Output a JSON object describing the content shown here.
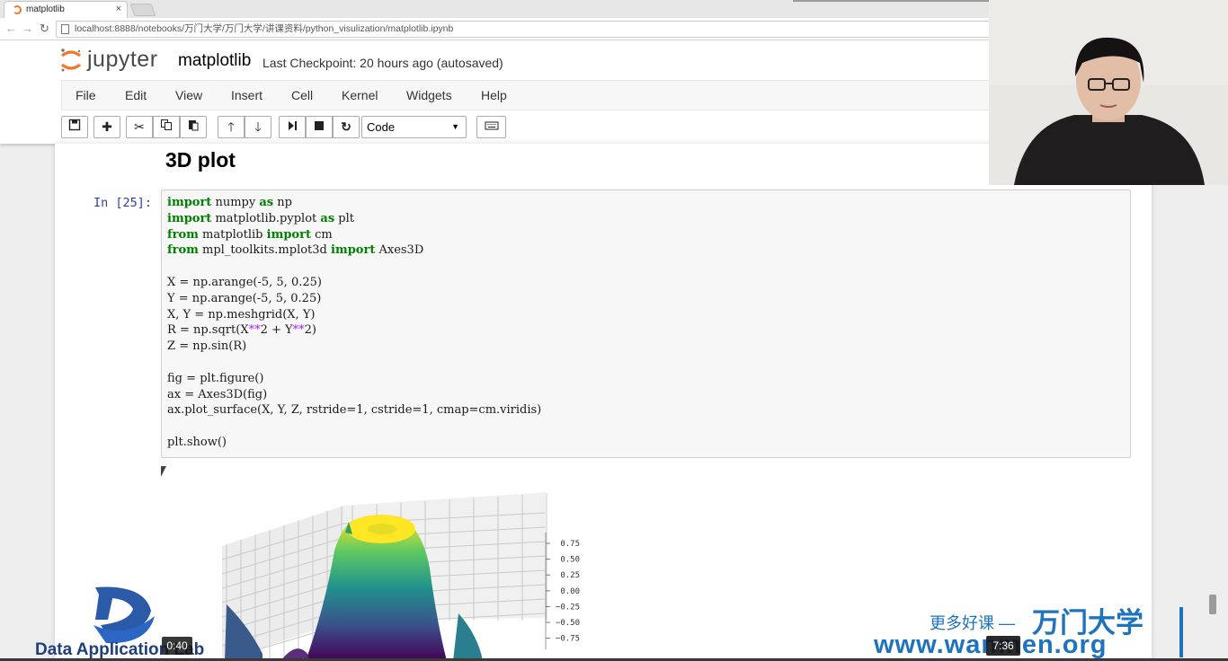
{
  "browser": {
    "tab_title": "matplotlib",
    "tab_close": "×",
    "url": "localhost:8888/notebooks/万门大学/万门大学/讲课资料/python_visulization/matplotlib.ipynb"
  },
  "jupyter": {
    "logo_text": "jupyter",
    "notebook_name": "matplotlib",
    "checkpoint": "Last Checkpoint: 20 hours ago (autosaved)",
    "menu": [
      "File",
      "Edit",
      "View",
      "Insert",
      "Cell",
      "Kernel",
      "Widgets",
      "Help"
    ],
    "cell_type": "Code",
    "toolbar_icons": [
      "save-icon",
      "plus-icon",
      "cut-icon",
      "copy-icon",
      "paste-icon",
      "arrow-up-icon",
      "arrow-down-icon",
      "step-icon",
      "stop-icon",
      "restart-icon",
      "keyboard-icon"
    ]
  },
  "notebook": {
    "heading": "3D plot",
    "prompt": "In  [25]:",
    "code_lines": [
      "import numpy as np",
      "import matplotlib.pyplot as plt",
      "from matplotlib import cm",
      "from mpl_toolkits.mplot3d import Axes3D",
      "",
      "X = np.arange(-5, 5, 0.25)",
      "Y = np.arange(-5, 5, 0.25)",
      "X, Y = np.meshgrid(X, Y)",
      "R = np.sqrt(X**2 + Y**2)",
      "Z = np.sin(R)",
      "",
      "fig = plt.figure()",
      "ax = Axes3D(fig)",
      "ax.plot_surface(X, Y, Z, rstride=1, cstride=1, cmap=cm.viridis)",
      "",
      "plt.show()"
    ]
  },
  "plot": {
    "z_ticks": [
      "0.75",
      "0.50",
      "0.25",
      "0.00",
      "−0.25",
      "−0.50",
      "−0.75"
    ],
    "colormap": [
      "#440154",
      "#3b528b",
      "#21918c",
      "#5ec962",
      "#fde725"
    ]
  },
  "overlay": {
    "logo_text": "Data Application Lab",
    "time_elapsed": "0:40",
    "time_total": "7:36",
    "slogan": "更多好课 —",
    "brand": "万门大学",
    "url": "www.wanmen.org"
  },
  "colors": {
    "jupyter_orange": "#f37626",
    "prompt_blue": "#303f9f",
    "keyword_green": "#008000",
    "watermark_blue": "#1e73be"
  }
}
